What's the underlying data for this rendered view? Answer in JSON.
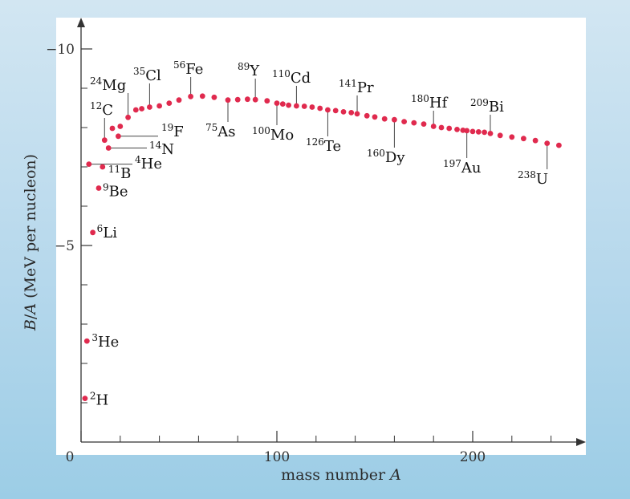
{
  "chart_data": {
    "type": "scatter",
    "xlabel": "mass number A",
    "ylabel": "B/A (MeV per nucleon)",
    "xlim": [
      0,
      250
    ],
    "ylim": [
      0,
      -10
    ],
    "x_ticks": [
      0,
      100,
      200
    ],
    "x_minor_ticks": [
      20,
      40,
      60,
      80,
      120,
      140,
      160,
      180,
      220,
      240
    ],
    "y_ticks": [
      -5,
      -10
    ],
    "y_minor_ticks": [
      -1,
      -2,
      -3,
      -4,
      -6,
      -7,
      -8,
      -9
    ],
    "y_tick_labels": [
      "−5",
      "−10"
    ],
    "grid": false,
    "marker_color": "#e02a4e",
    "axis_color": "#333333",
    "series": [
      {
        "x": [
          2,
          3,
          4,
          6,
          9,
          11,
          12,
          14,
          16,
          19,
          20,
          24,
          28,
          31,
          35,
          40,
          45,
          50,
          56,
          62,
          68,
          75,
          80,
          85,
          89,
          95,
          100,
          103,
          106,
          110,
          114,
          118,
          122,
          126,
          130,
          134,
          138,
          141,
          146,
          150,
          155,
          160,
          165,
          170,
          175,
          180,
          184,
          188,
          192,
          195,
          197,
          200,
          203,
          206,
          209,
          214,
          220,
          226,
          232,
          238,
          244
        ],
        "y": [
          -1.11,
          -2.57,
          -7.07,
          -5.33,
          -6.46,
          -7.0,
          -7.68,
          -7.48,
          -7.98,
          -7.78,
          -8.03,
          -8.26,
          -8.45,
          -8.48,
          -8.52,
          -8.55,
          -8.62,
          -8.7,
          -8.79,
          -8.8,
          -8.77,
          -8.7,
          -8.71,
          -8.72,
          -8.71,
          -8.68,
          -8.62,
          -8.6,
          -8.57,
          -8.55,
          -8.54,
          -8.52,
          -8.49,
          -8.45,
          -8.43,
          -8.4,
          -8.38,
          -8.35,
          -8.3,
          -8.27,
          -8.22,
          -8.2,
          -8.15,
          -8.12,
          -8.09,
          -8.03,
          -8.0,
          -7.98,
          -7.95,
          -7.93,
          -7.92,
          -7.9,
          -7.89,
          -7.88,
          -7.85,
          -7.8,
          -7.76,
          -7.72,
          -7.67,
          -7.6,
          -7.55
        ]
      }
    ],
    "annotations": [
      {
        "mass": "2",
        "symbol": "H",
        "x": 2,
        "y": -1.11
      },
      {
        "mass": "3",
        "symbol": "He",
        "x": 3,
        "y": -2.57
      },
      {
        "mass": "6",
        "symbol": "Li",
        "x": 6,
        "y": -5.33
      },
      {
        "mass": "9",
        "symbol": "Be",
        "x": 9,
        "y": -6.46
      },
      {
        "mass": "11",
        "symbol": "B",
        "x": 11,
        "y": -7.0
      },
      {
        "mass": "4",
        "symbol": "He",
        "x": 4,
        "y": -7.07
      },
      {
        "mass": "14",
        "symbol": "N",
        "x": 14,
        "y": -7.48
      },
      {
        "mass": "19",
        "symbol": "F",
        "x": 19,
        "y": -7.78
      },
      {
        "mass": "12",
        "symbol": "C",
        "x": 12,
        "y": -7.68
      },
      {
        "mass": "24",
        "symbol": "Mg",
        "x": 24,
        "y": -8.26
      },
      {
        "mass": "35",
        "symbol": "Cl",
        "x": 35,
        "y": -8.52
      },
      {
        "mass": "56",
        "symbol": "Fe",
        "x": 56,
        "y": -8.79
      },
      {
        "mass": "75",
        "symbol": "As",
        "x": 75,
        "y": -8.7
      },
      {
        "mass": "89",
        "symbol": "Y",
        "x": 89,
        "y": -8.71
      },
      {
        "mass": "100",
        "symbol": "Mo",
        "x": 100,
        "y": -8.62
      },
      {
        "mass": "110",
        "symbol": "Cd",
        "x": 110,
        "y": -8.55
      },
      {
        "mass": "126",
        "symbol": "Te",
        "x": 126,
        "y": -8.45
      },
      {
        "mass": "141",
        "symbol": "Pr",
        "x": 141,
        "y": -8.35
      },
      {
        "mass": "160",
        "symbol": "Dy",
        "x": 160,
        "y": -8.2
      },
      {
        "mass": "180",
        "symbol": "Hf",
        "x": 180,
        "y": -8.03
      },
      {
        "mass": "197",
        "symbol": "Au",
        "x": 197,
        "y": -7.92
      },
      {
        "mass": "209",
        "symbol": "Bi",
        "x": 209,
        "y": -7.85
      },
      {
        "mass": "238",
        "symbol": "U",
        "x": 238,
        "y": -7.6
      }
    ]
  }
}
